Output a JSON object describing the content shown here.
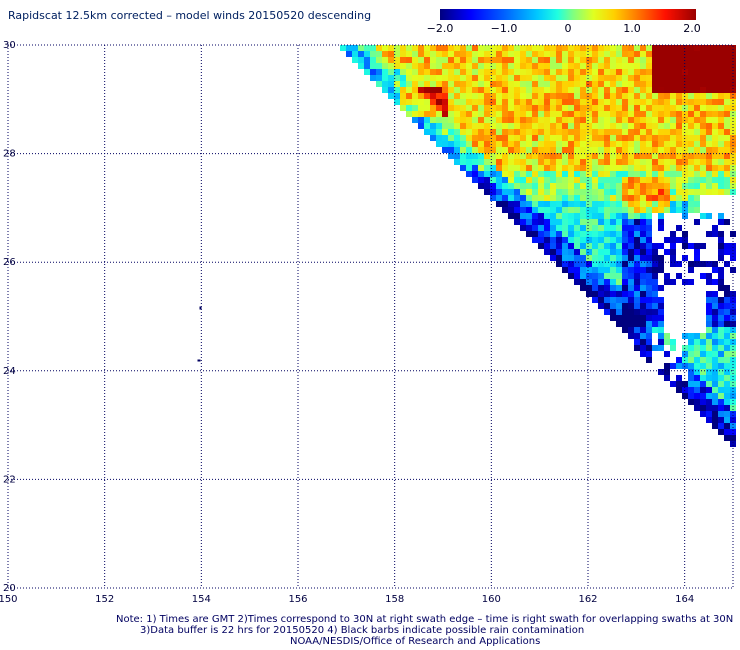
{
  "title": "Rapidscat 12.5km corrected – model winds 20150520 descending",
  "colorbar": {
    "labels": [
      "−2.0",
      "−1.0",
      "0",
      "1.0",
      "2.0"
    ],
    "values": [
      -2.0,
      -1.0,
      0,
      1.0,
      2.0
    ],
    "colors": [
      "#00007f",
      "#0000ff",
      "#0060ff",
      "#00c8ff",
      "#20ffe0",
      "#80ff80",
      "#e0ff20",
      "#ffd000",
      "#ff7000",
      "#ff1000",
      "#9a0000"
    ]
  },
  "axes": {
    "lon_labels": [
      "150",
      "152",
      "154",
      "156",
      "158",
      "160",
      "162",
      "164"
    ],
    "lat_labels": [
      "30",
      "28",
      "26",
      "24",
      "22",
      "20"
    ],
    "lon_range": [
      150,
      165
    ],
    "lat_range": [
      20,
      30
    ],
    "grid": "dotted"
  },
  "swath": {
    "description_values": "wind difference field, positive near north and central, negative along southwest edge",
    "typical_range": [
      -2.0,
      2.0
    ]
  },
  "note": {
    "line1": "Note: 1) Times are GMT 2)Times correspond to 30N at right swath edge – time is right swath for overlapping swaths at 30N",
    "line2": "3)Data buffer is 22 hrs for 20150520 4) Black barbs indicate possible rain contamination",
    "line3": "NOAA/NESDIS/Office of Research and Applications"
  }
}
